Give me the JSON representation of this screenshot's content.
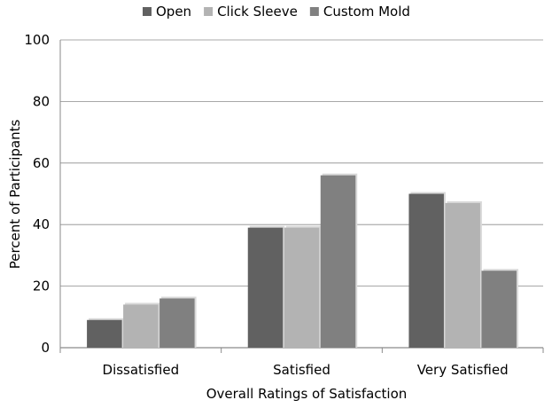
{
  "chart_data": {
    "type": "bar",
    "title": "",
    "xlabel": "Overall Ratings of Satisfaction",
    "ylabel": "Percent of Participants",
    "categories": [
      "Dissatisfied",
      "Satisfied",
      "Very Satisfied"
    ],
    "series": [
      {
        "name": "Open",
        "color": "#616161",
        "values": [
          9,
          39,
          50
        ]
      },
      {
        "name": "Click Sleeve",
        "color": "#b3b3b3",
        "values": [
          14,
          39,
          47
        ]
      },
      {
        "name": "Custom Mold",
        "color": "#808080",
        "values": [
          16,
          56,
          25
        ]
      }
    ],
    "ylim": [
      0,
      100
    ],
    "yticks": [
      "0",
      "20",
      "40",
      "60",
      "80",
      "100"
    ],
    "grid": true,
    "legend_position": "top"
  }
}
